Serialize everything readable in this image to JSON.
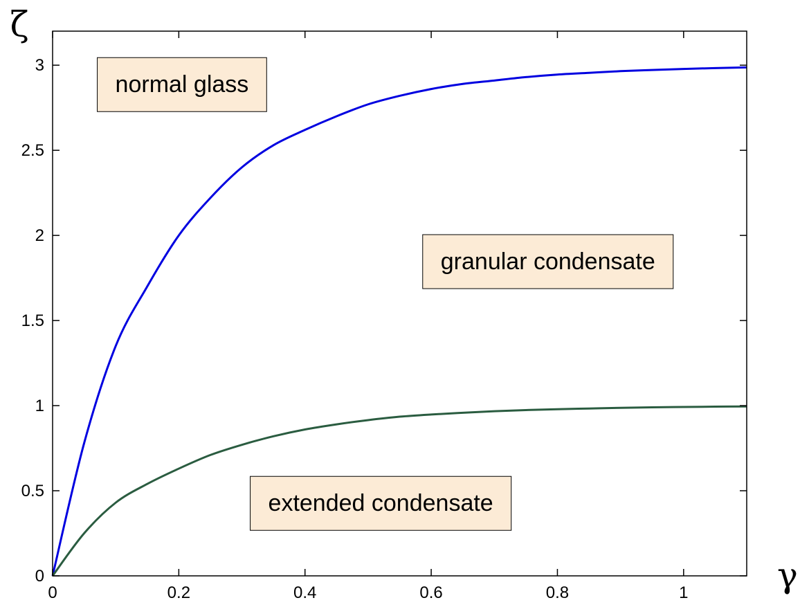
{
  "chart_data": {
    "type": "line",
    "xlabel": "γ",
    "ylabel": "ζ",
    "xlim": [
      0,
      1.1
    ],
    "ylim": [
      0,
      3.2
    ],
    "xticks": [
      0,
      0.2,
      0.4,
      0.6,
      0.8,
      1
    ],
    "xtick_labels": [
      "0",
      "0.2",
      "0.4",
      "0.6",
      "0.8",
      "1"
    ],
    "yticks": [
      0,
      0.5,
      1,
      1.5,
      2,
      2.5,
      3
    ],
    "ytick_labels": [
      "0",
      "0.5",
      "1",
      "1.5",
      "2",
      "2.5",
      "3"
    ],
    "grid": false,
    "series": [
      {
        "color": "#0000e0",
        "x": [
          0,
          0.05,
          0.1,
          0.15,
          0.2,
          0.25,
          0.3,
          0.35,
          0.4,
          0.45,
          0.5,
          0.55,
          0.6,
          0.65,
          0.7,
          0.75,
          0.8,
          0.85,
          0.9,
          0.95,
          1.0,
          1.05,
          1.1
        ],
        "y": [
          0,
          0.78,
          1.35,
          1.7,
          2.0,
          2.22,
          2.4,
          2.53,
          2.62,
          2.7,
          2.77,
          2.82,
          2.86,
          2.89,
          2.91,
          2.93,
          2.945,
          2.955,
          2.965,
          2.972,
          2.978,
          2.983,
          2.987
        ]
      },
      {
        "color": "#2a5c40",
        "x": [
          0,
          0.05,
          0.1,
          0.15,
          0.2,
          0.25,
          0.3,
          0.35,
          0.4,
          0.45,
          0.5,
          0.55,
          0.6,
          0.65,
          0.7,
          0.75,
          0.8,
          0.85,
          0.9,
          0.95,
          1.0,
          1.05,
          1.1
        ],
        "y": [
          0,
          0.25,
          0.43,
          0.54,
          0.63,
          0.71,
          0.77,
          0.82,
          0.86,
          0.89,
          0.915,
          0.935,
          0.948,
          0.958,
          0.967,
          0.974,
          0.979,
          0.983,
          0.987,
          0.99,
          0.992,
          0.994,
          0.995
        ]
      }
    ],
    "annotations": [
      {
        "text": "normal glass",
        "x": 0.205,
        "y": 2.89
      },
      {
        "text": "granular condensate",
        "x": 0.785,
        "y": 1.85
      },
      {
        "text": "extended condensate",
        "x": 0.52,
        "y": 0.43
      }
    ],
    "annotation_box_color": "#fcebd6"
  }
}
